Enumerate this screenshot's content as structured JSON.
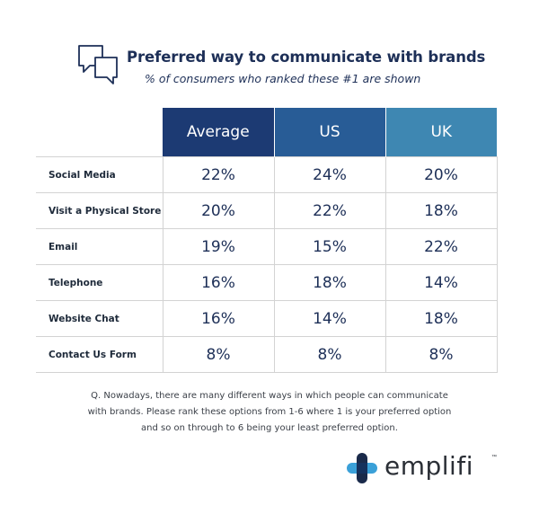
{
  "header": {
    "title": "Preferred way to communicate with brands",
    "subtitle": "% of consumers who ranked these #1 are shown",
    "icon": "chat-bubbles-icon"
  },
  "chart_data": {
    "type": "table",
    "columns": [
      "Average",
      "US",
      "UK"
    ],
    "rows": [
      {
        "label": "Social Media",
        "values": [
          "22%",
          "24%",
          "20%"
        ]
      },
      {
        "label": "Visit a Physical Store",
        "values": [
          "20%",
          "22%",
          "18%"
        ]
      },
      {
        "label": "Email",
        "values": [
          "19%",
          "15%",
          "22%"
        ]
      },
      {
        "label": "Telephone",
        "values": [
          "16%",
          "18%",
          "14%"
        ]
      },
      {
        "label": "Website Chat",
        "values": [
          "16%",
          "14%",
          "18%"
        ]
      },
      {
        "label": "Contact Us Form",
        "values": [
          "8%",
          "8%",
          "8%"
        ]
      }
    ],
    "header_colors": [
      "#1c3a73",
      "#285c96",
      "#3e87b2"
    ]
  },
  "footnote": {
    "line1": "Q. Nowadays, there are many different ways in which people can communicate",
    "line2": "with brands. Please rank these options from 1-6 where 1 is your preferred option",
    "line3": "and so on through to 6 being your least preferred option."
  },
  "brand": {
    "name": "emplifi",
    "trademark": "™",
    "icon": "emplifi-logo-icon"
  }
}
